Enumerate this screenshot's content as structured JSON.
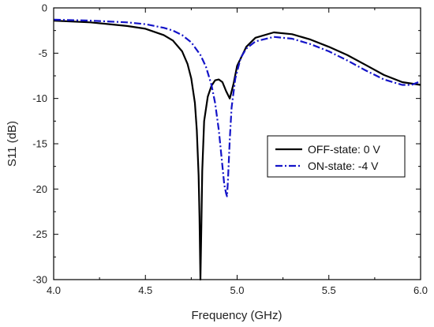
{
  "chart_data": {
    "type": "line",
    "title": "",
    "xlabel": "Frequency (GHz)",
    "ylabel": "S11 (dB)",
    "xlim": [
      4.0,
      6.0
    ],
    "ylim": [
      -30,
      0
    ],
    "x_ticks": [
      4.0,
      4.5,
      5.0,
      5.5,
      6.0
    ],
    "x_tick_labels": [
      "4.0",
      "4.5",
      "5.0",
      "5.5",
      "6.0"
    ],
    "y_ticks": [
      0,
      -5,
      -10,
      -15,
      -20,
      -25,
      -30
    ],
    "y_tick_labels": [
      "0",
      "-5",
      "-10",
      "-15",
      "-20",
      "-25",
      "-30"
    ],
    "grid": false,
    "legend_position": "right-middle",
    "series": [
      {
        "name": "OFF-state: 0 V",
        "color": "#000000",
        "dash": "solid",
        "x": [
          4.0,
          4.2,
          4.4,
          4.5,
          4.6,
          4.65,
          4.7,
          4.73,
          4.75,
          4.77,
          4.78,
          4.79,
          4.795,
          4.8,
          4.805,
          4.81,
          4.82,
          4.84,
          4.86,
          4.88,
          4.9,
          4.92,
          4.94,
          4.96,
          4.98,
          5.0,
          5.05,
          5.1,
          5.2,
          5.3,
          5.4,
          5.5,
          5.6,
          5.7,
          5.8,
          5.9,
          6.0
        ],
        "y": [
          -1.4,
          -1.6,
          -2.0,
          -2.3,
          -3.0,
          -3.6,
          -4.8,
          -6.2,
          -7.8,
          -10.5,
          -13.5,
          -18.5,
          -23.0,
          -30.0,
          -24.0,
          -18.0,
          -12.5,
          -9.8,
          -8.6,
          -8.0,
          -7.9,
          -8.2,
          -9.2,
          -10.0,
          -8.4,
          -6.4,
          -4.3,
          -3.3,
          -2.7,
          -2.9,
          -3.5,
          -4.3,
          -5.2,
          -6.3,
          -7.4,
          -8.2,
          -8.5
        ]
      },
      {
        "name": "ON-state: -4 V",
        "color": "#1414c8",
        "dash": "dashdot",
        "x": [
          4.0,
          4.2,
          4.4,
          4.5,
          4.6,
          4.65,
          4.7,
          4.75,
          4.8,
          4.83,
          4.86,
          4.88,
          4.9,
          4.91,
          4.92,
          4.93,
          4.94,
          4.945,
          4.95,
          4.96,
          4.97,
          4.99,
          5.02,
          5.05,
          5.1,
          5.2,
          5.3,
          5.4,
          5.5,
          5.6,
          5.7,
          5.8,
          5.9,
          5.95,
          6.0
        ],
        "y": [
          -1.3,
          -1.4,
          -1.6,
          -1.8,
          -2.2,
          -2.5,
          -3.0,
          -3.8,
          -5.2,
          -6.5,
          -8.5,
          -10.5,
          -13.5,
          -15.5,
          -17.5,
          -19.5,
          -20.5,
          -20.8,
          -19.0,
          -14.5,
          -11.0,
          -7.8,
          -5.5,
          -4.5,
          -3.7,
          -3.2,
          -3.4,
          -4.0,
          -4.8,
          -5.8,
          -6.9,
          -7.9,
          -8.5,
          -8.5,
          -8.1
        ]
      }
    ]
  }
}
